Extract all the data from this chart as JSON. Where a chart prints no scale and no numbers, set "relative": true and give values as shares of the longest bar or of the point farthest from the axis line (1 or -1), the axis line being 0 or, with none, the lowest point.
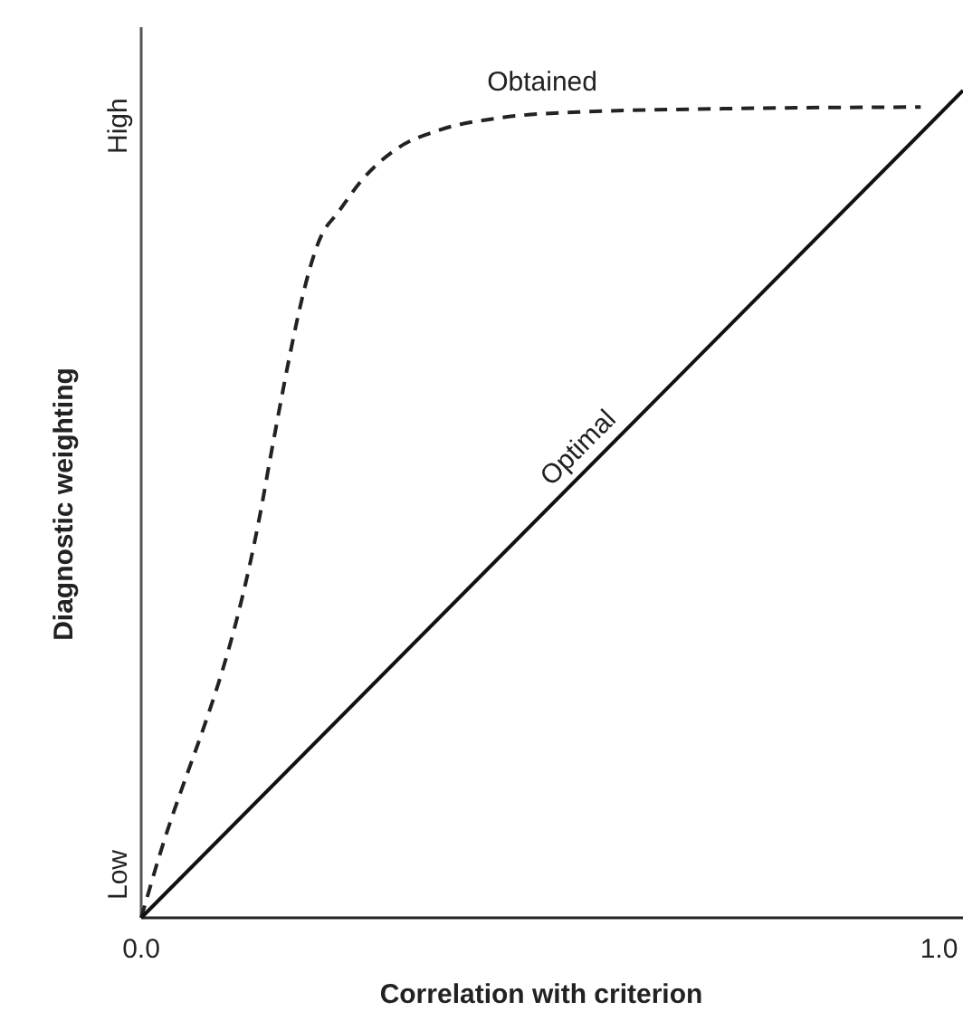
{
  "chart_data": {
    "type": "line",
    "xlabel": "Correlation with criterion",
    "ylabel": "Diagnostic weighting",
    "relative": true,
    "xlim": [
      0,
      1.03
    ],
    "xticks": [
      {
        "value": 0,
        "label": "0.0"
      },
      {
        "value": 1,
        "label": "1.0"
      }
    ],
    "annotations": [
      "Low",
      "High"
    ],
    "series": [
      {
        "name": "Obtained",
        "color": "#222222",
        "line_style": "dashed",
        "x": [
          0,
          0.016,
          0.152,
          0.163,
          0.226,
          0.247,
          0.276,
          0.321,
          0.373,
          0.45,
          0.548,
          0.729,
          0.977
        ],
        "values": [
          0,
          0.053,
          0.503,
          0.562,
          0.825,
          0.853,
          0.891,
          0.93,
          0.952,
          0.967,
          0.974,
          0.978,
          0.98
        ]
      },
      {
        "name": "Optimal",
        "color": "#111111",
        "line_style": "solid",
        "x": [
          0,
          1.03
        ],
        "values": [
          0,
          1
        ]
      }
    ]
  }
}
